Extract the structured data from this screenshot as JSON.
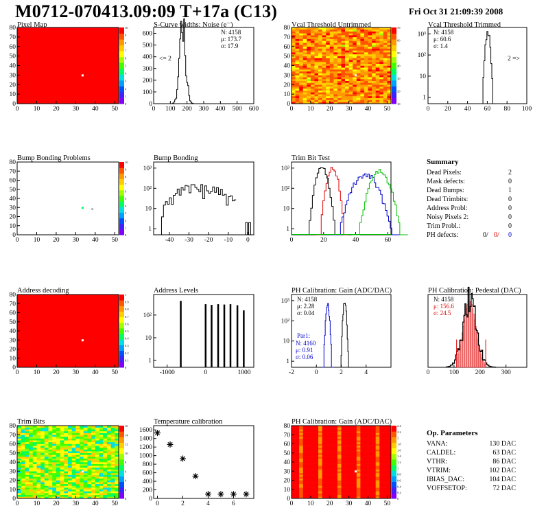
{
  "header": {
    "title": "M0712-070413.09:09 T+17a (C13)",
    "date": "Fri Oct 31 21:09:39 2008"
  },
  "colors": {
    "palette": [
      "#7f00ff",
      "#4020ff",
      "#0050ff",
      "#00a0ff",
      "#00e0e0",
      "#00ff60",
      "#40ff00",
      "#a0ff00",
      "#ffff00",
      "#ffcc00",
      "#ff9900",
      "#ff5500",
      "#ff0000"
    ],
    "dead_pixel": "#ffffff",
    "trim_black": "#000000",
    "trim_red": "#e00000",
    "trim_blue": "#0000cc",
    "trim_green": "#00c000",
    "fit_red": "#e00000",
    "blue_stats": "#0000cc"
  },
  "chart_data": [
    {
      "id": "pixel-map",
      "type": "heatmap",
      "title": "Pixel Map",
      "x_ticks": [
        0,
        10,
        20,
        30,
        40,
        50
      ],
      "y_ticks": [
        0,
        10,
        20,
        30,
        40,
        50,
        60,
        70,
        80
      ],
      "xlim": [
        0,
        52
      ],
      "ylim": [
        0,
        80
      ],
      "z_ticks": [
        "0",
        "1",
        "2",
        "3",
        "4",
        "5",
        "6",
        "7",
        "8",
        "9",
        "10"
      ],
      "fill_color": "#ff0000",
      "dead_pixels": [
        [
          33,
          29
        ]
      ]
    },
    {
      "id": "scurve-noise",
      "type": "line",
      "title": "S-Curve widths: Noise (e⁻)",
      "x_ticks": [
        0,
        100,
        200,
        300,
        400,
        500,
        600
      ],
      "y_ticks": [
        0,
        100,
        200,
        300,
        400,
        500,
        600
      ],
      "xlim": [
        0,
        600
      ],
      "ylim": [
        0,
        650
      ],
      "stats": {
        "N": "4158",
        "mu": "173.7",
        "sigma": "17.9"
      },
      "annotation": "<= 2",
      "peak": {
        "center": 174,
        "sigma": 18,
        "height": 640
      }
    },
    {
      "id": "vcal-untrimmed",
      "type": "heatmap",
      "title": "Vcal Threshold Untrimmed",
      "x_ticks": [
        0,
        10,
        20,
        30,
        40,
        50
      ],
      "y_ticks": [
        0,
        10,
        20,
        30,
        40,
        50,
        60,
        70,
        80
      ],
      "xlim": [
        0,
        52
      ],
      "ylim": [
        0,
        80
      ],
      "z_ticks": [
        "70",
        "60",
        "50",
        "40",
        "30",
        "20",
        "10"
      ],
      "dead_pixels": [
        [
          33,
          29
        ]
      ]
    },
    {
      "id": "vcal-trimmed",
      "type": "line",
      "title": "Vcal Threshold Trimmed",
      "x_ticks": [
        0,
        20,
        40,
        60,
        80,
        100
      ],
      "y_ticks": [
        "1",
        "10",
        "10²",
        "10³"
      ],
      "xlim": [
        0,
        100
      ],
      "log_y": true,
      "ylim": [
        0.5,
        2000
      ],
      "stats": {
        "N": "4158",
        "mu": "60.6",
        "sigma": "1.4"
      },
      "annotation": "2 =>",
      "peak": {
        "center": 60.6,
        "sigma": 1.4,
        "height": 1200
      }
    },
    {
      "id": "bump-problems",
      "type": "heatmap",
      "title": "Bump Bonding Problems",
      "x_ticks": [
        0,
        10,
        20,
        30,
        40,
        50
      ],
      "y_ticks": [
        0,
        10,
        20,
        30,
        40,
        50,
        60,
        70,
        80
      ],
      "xlim": [
        0,
        52
      ],
      "ylim": [
        0,
        80
      ],
      "z_ticks": [
        "0",
        "1",
        "2",
        "3",
        "4",
        "5",
        "6",
        "7",
        "8",
        "9",
        "10"
      ],
      "marks": [
        {
          "x": 33,
          "y": 29,
          "color": "#00ff60"
        },
        {
          "x": 38,
          "y": 27,
          "color": "#000000"
        }
      ]
    },
    {
      "id": "bump-bonding",
      "type": "line",
      "title": "Bump Bonding",
      "x_ticks": [
        -40,
        -30,
        -20,
        -10,
        0
      ],
      "y_ticks": [
        "1",
        "10",
        "10²",
        "10³"
      ],
      "xlim": [
        -48,
        3
      ],
      "log_y": true,
      "ylim": [
        0.5,
        2000
      ],
      "peak": {
        "center": -24,
        "sigma": 9,
        "height": 300
      }
    },
    {
      "id": "trim-bit-test",
      "type": "line",
      "title": "Trim Bit Test",
      "x_ticks": [
        0,
        20,
        40,
        60
      ],
      "y_ticks": [
        "1",
        "10",
        "10²",
        "10³"
      ],
      "xlim": [
        0,
        62
      ],
      "log_y": true,
      "ylim": [
        0.5,
        2000
      ],
      "series": [
        {
          "color_key": "trim_black",
          "center": 19,
          "sigma": 2.2,
          "height": 1000
        },
        {
          "color_key": "trim_red",
          "center": 25.5,
          "sigma": 2.0,
          "height": 1100
        },
        {
          "color_key": "trim_blue",
          "center": 46,
          "sigma": 4.5,
          "height": 500
        },
        {
          "color_key": "trim_green",
          "center": 55,
          "sigma": 3.5,
          "height": 700
        }
      ]
    },
    {
      "id": "address-decoding",
      "type": "heatmap",
      "title": "Address decoding",
      "x_ticks": [
        0,
        10,
        20,
        30,
        40,
        50
      ],
      "y_ticks": [
        0,
        10,
        20,
        30,
        40,
        50,
        60,
        70,
        80
      ],
      "xlim": [
        0,
        52
      ],
      "ylim": [
        0,
        80
      ],
      "z_ticks": [
        "0",
        "0.1",
        "0.2",
        "0.3",
        "0.4",
        "0.5",
        "0.6",
        "0.7",
        "0.8",
        "0.9",
        "1"
      ],
      "fill_color": "#ff0000",
      "dead_pixels": [
        [
          33,
          29
        ]
      ]
    },
    {
      "id": "address-levels",
      "type": "bar",
      "title": "Address Levels",
      "x_ticks": [
        -1000,
        0,
        1000
      ],
      "y_ticks": [
        "1",
        "10",
        "10²"
      ],
      "xlim": [
        -1350,
        1250
      ],
      "log_y": true,
      "ylim": [
        0.5,
        800
      ],
      "spikes": [
        {
          "x": -650,
          "height": 420
        },
        {
          "x": -5,
          "height": 300
        },
        {
          "x": 150,
          "height": 280
        },
        {
          "x": 320,
          "height": 300
        },
        {
          "x": 480,
          "height": 290
        },
        {
          "x": 640,
          "height": 300
        },
        {
          "x": 820,
          "height": 270
        },
        {
          "x": 985,
          "height": 160
        }
      ]
    },
    {
      "id": "ph-gain",
      "type": "line",
      "title": "PH Calibration: Gain (ADC/DAC)",
      "x_ticks": [
        -2,
        0,
        2,
        4
      ],
      "y_ticks": [
        "1",
        "10",
        "10²",
        "10³"
      ],
      "xlim": [
        -2,
        6
      ],
      "log_y": true,
      "ylim": [
        0.5,
        2000
      ],
      "stats": {
        "N": "4158",
        "mu": "2.28",
        "sigma": "0.04"
      },
      "stats2": {
        "label": "Par1:",
        "N": "4160",
        "mu": "0.91",
        "sigma": "0.06"
      },
      "series": [
        {
          "color_key": "trim_black",
          "center": 2.28,
          "sigma": 0.08,
          "height": 900
        },
        {
          "color_key": "trim_blue",
          "center": 0.91,
          "sigma": 0.09,
          "height": 600
        }
      ]
    },
    {
      "id": "ph-pedestal",
      "type": "bar",
      "title": "PH Calibration: Pedestal (DAC)",
      "x_ticks": [
        0,
        100,
        200,
        300
      ],
      "y_ticks": [],
      "xlim": [
        0,
        380
      ],
      "ylim": [
        0,
        1.1
      ],
      "stats": {
        "N": "4158",
        "mu": "156.6",
        "sigma": "24.5"
      },
      "peak": {
        "center": 160,
        "sigma": 24.5,
        "height": 1.0
      },
      "fit_range": [
        110,
        222
      ]
    },
    {
      "id": "trim-bits",
      "type": "heatmap",
      "title": "Trim Bits",
      "x_ticks": [
        0,
        10,
        20,
        30,
        40,
        50
      ],
      "y_ticks": [
        0,
        10,
        20,
        30,
        40,
        50,
        60,
        70,
        80
      ],
      "xlim": [
        0,
        52
      ],
      "ylim": [
        0,
        80
      ],
      "z_ticks": [
        "0",
        "2",
        "4",
        "6",
        "8",
        "10",
        "12",
        "14",
        "16"
      ],
      "dead_pixels": [
        [
          33,
          29
        ]
      ]
    },
    {
      "id": "temperature-calibration",
      "type": "scatter",
      "title": "Temperature calibration",
      "x_ticks": [
        0,
        2,
        4,
        6
      ],
      "y_ticks": [
        0,
        200,
        400,
        600,
        800,
        1000,
        1200,
        1400,
        1600
      ],
      "xlim": [
        -0.3,
        7.6
      ],
      "ylim": [
        0,
        1700
      ],
      "x": [
        0,
        1,
        2,
        3,
        4,
        5,
        6,
        7
      ],
      "y": [
        1530,
        1260,
        930,
        520,
        100,
        100,
        100,
        100
      ]
    },
    {
      "id": "ph-gain-map",
      "type": "heatmap",
      "title": "PH Calibration: Gain (ADC/DAC)",
      "x_ticks": [
        0,
        10,
        20,
        30,
        40,
        50
      ],
      "y_ticks": [
        0,
        10,
        20,
        30,
        40,
        50,
        60,
        70,
        80
      ],
      "xlim": [
        0,
        52
      ],
      "ylim": [
        0,
        80
      ],
      "z_ticks": [
        "0",
        "0.2",
        "0.4",
        "0.6",
        "0.8",
        "1",
        "1.2",
        "1.4",
        "1.6",
        "1.8",
        "2",
        "2.2",
        "2.4"
      ],
      "dead_pixels": [
        [
          33,
          29
        ]
      ]
    }
  ],
  "summary": {
    "title": "Summary",
    "rows": [
      {
        "label": "Dead Pixels:",
        "value": "2"
      },
      {
        "label": "Mask defects:",
        "value": "0"
      },
      {
        "label": "Dead Bumps:",
        "value": "1"
      },
      {
        "label": "Dead Trimbits:",
        "value": "0"
      },
      {
        "label": "Address Probl:",
        "value": "0"
      },
      {
        "label": "Noisy Pixels 2:",
        "value": "0"
      },
      {
        "label": "Trim Probl.:",
        "value": "0"
      }
    ],
    "ph_defects": {
      "label": "PH defects:",
      "v1": "0/",
      "v2": "0/",
      "v3": "0"
    }
  },
  "op_parameters": {
    "title": "Op. Parameters",
    "rows": [
      {
        "label": "VANA:",
        "value": "130 DAC"
      },
      {
        "label": "CALDEL:",
        "value": "63 DAC"
      },
      {
        "label": "VTHR:",
        "value": "86 DAC"
      },
      {
        "label": "VTRIM:",
        "value": "102 DAC"
      },
      {
        "label": "IBIAS_DAC:",
        "value": "104 DAC"
      },
      {
        "label": "VOFFSETOP:",
        "value": "72 DAC"
      }
    ]
  }
}
